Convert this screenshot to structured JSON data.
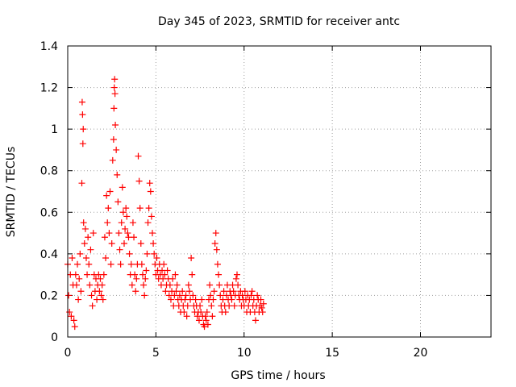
{
  "chart_data": {
    "type": "scatter",
    "title": "Day 345 of 2023, SRMTID for receiver antc",
    "xlabel": "GPS time / hours",
    "ylabel": "SRMTID / TECUs",
    "xlim": [
      0,
      24
    ],
    "ylim": [
      0,
      1.4
    ],
    "x_ticks": [
      0,
      5,
      10,
      15,
      20
    ],
    "x_tick_labels": [
      "0",
      "5",
      "10",
      "15",
      "20"
    ],
    "y_ticks": [
      0,
      0.2,
      0.4,
      0.6,
      0.8,
      1,
      1.2,
      1.4
    ],
    "y_tick_labels": [
      "0",
      "0.2",
      "0.4",
      "0.6",
      "0.8",
      "1",
      "1.2",
      "1.4"
    ],
    "grid": true,
    "marker": "+",
    "series": [
      {
        "name": "SRMTID",
        "color": "#ff0000",
        "points": [
          [
            0.0,
            0.35
          ],
          [
            0.05,
            0.2
          ],
          [
            0.1,
            0.12
          ],
          [
            0.15,
            0.3
          ],
          [
            0.2,
            0.1
          ],
          [
            0.25,
            0.38
          ],
          [
            0.3,
            0.25
          ],
          [
            0.35,
            0.08
          ],
          [
            0.4,
            0.05
          ],
          [
            0.45,
            0.3
          ],
          [
            0.5,
            0.25
          ],
          [
            0.55,
            0.35
          ],
          [
            0.6,
            0.18
          ],
          [
            0.65,
            0.28
          ],
          [
            0.7,
            0.4
          ],
          [
            0.75,
            0.22
          ],
          [
            0.8,
            0.74
          ],
          [
            0.82,
            1.13
          ],
          [
            0.84,
            1.07
          ],
          [
            0.86,
            0.93
          ],
          [
            0.88,
            1.0
          ],
          [
            0.9,
            0.55
          ],
          [
            0.95,
            0.45
          ],
          [
            1.0,
            0.52
          ],
          [
            1.05,
            0.38
          ],
          [
            1.1,
            0.3
          ],
          [
            1.15,
            0.48
          ],
          [
            1.2,
            0.35
          ],
          [
            1.25,
            0.25
          ],
          [
            1.3,
            0.42
          ],
          [
            1.35,
            0.2
          ],
          [
            1.4,
            0.15
          ],
          [
            1.45,
            0.5
          ],
          [
            1.5,
            0.3
          ],
          [
            1.55,
            0.22
          ],
          [
            1.6,
            0.28
          ],
          [
            1.65,
            0.18
          ],
          [
            1.7,
            0.25
          ],
          [
            1.75,
            0.3
          ],
          [
            1.8,
            0.22
          ],
          [
            1.85,
            0.28
          ],
          [
            1.9,
            0.2
          ],
          [
            1.95,
            0.25
          ],
          [
            2.0,
            0.18
          ],
          [
            2.05,
            0.3
          ],
          [
            2.1,
            0.48
          ],
          [
            2.15,
            0.38
          ],
          [
            2.2,
            0.68
          ],
          [
            2.25,
            0.55
          ],
          [
            2.3,
            0.62
          ],
          [
            2.35,
            0.5
          ],
          [
            2.4,
            0.7
          ],
          [
            2.45,
            0.35
          ],
          [
            2.5,
            0.45
          ],
          [
            2.55,
            0.85
          ],
          [
            2.6,
            0.95
          ],
          [
            2.62,
            1.1
          ],
          [
            2.64,
            1.2
          ],
          [
            2.66,
            1.24
          ],
          [
            2.68,
            1.17
          ],
          [
            2.7,
            1.02
          ],
          [
            2.75,
            0.9
          ],
          [
            2.8,
            0.78
          ],
          [
            2.85,
            0.65
          ],
          [
            2.9,
            0.5
          ],
          [
            2.95,
            0.42
          ],
          [
            3.0,
            0.35
          ],
          [
            3.05,
            0.55
          ],
          [
            3.1,
            0.72
          ],
          [
            3.15,
            0.6
          ],
          [
            3.2,
            0.45
          ],
          [
            3.25,
            0.52
          ],
          [
            3.3,
            0.62
          ],
          [
            3.35,
            0.58
          ],
          [
            3.4,
            0.5
          ],
          [
            3.45,
            0.48
          ],
          [
            3.5,
            0.4
          ],
          [
            3.55,
            0.3
          ],
          [
            3.6,
            0.35
          ],
          [
            3.65,
            0.25
          ],
          [
            3.7,
            0.55
          ],
          [
            3.75,
            0.48
          ],
          [
            3.8,
            0.3
          ],
          [
            3.85,
            0.22
          ],
          [
            3.9,
            0.28
          ],
          [
            3.95,
            0.35
          ],
          [
            4.0,
            0.87
          ],
          [
            4.05,
            0.75
          ],
          [
            4.1,
            0.62
          ],
          [
            4.15,
            0.45
          ],
          [
            4.2,
            0.35
          ],
          [
            4.25,
            0.3
          ],
          [
            4.3,
            0.25
          ],
          [
            4.35,
            0.2
          ],
          [
            4.4,
            0.28
          ],
          [
            4.45,
            0.32
          ],
          [
            4.5,
            0.4
          ],
          [
            4.55,
            0.55
          ],
          [
            4.6,
            0.62
          ],
          [
            4.65,
            0.74
          ],
          [
            4.7,
            0.7
          ],
          [
            4.75,
            0.58
          ],
          [
            4.8,
            0.5
          ],
          [
            4.85,
            0.45
          ],
          [
            4.9,
            0.4
          ],
          [
            4.95,
            0.35
          ],
          [
            5.0,
            0.3
          ],
          [
            5.05,
            0.38
          ],
          [
            5.1,
            0.32
          ],
          [
            5.15,
            0.28
          ],
          [
            5.2,
            0.35
          ],
          [
            5.25,
            0.3
          ],
          [
            5.3,
            0.25
          ],
          [
            5.35,
            0.32
          ],
          [
            5.4,
            0.28
          ],
          [
            5.45,
            0.35
          ],
          [
            5.5,
            0.3
          ],
          [
            5.55,
            0.22
          ],
          [
            5.6,
            0.25
          ],
          [
            5.65,
            0.32
          ],
          [
            5.7,
            0.28
          ],
          [
            5.75,
            0.2
          ],
          [
            5.8,
            0.25
          ],
          [
            5.85,
            0.18
          ],
          [
            5.9,
            0.22
          ],
          [
            5.95,
            0.28
          ],
          [
            6.0,
            0.15
          ],
          [
            6.05,
            0.2
          ],
          [
            6.1,
            0.3
          ],
          [
            6.15,
            0.22
          ],
          [
            6.2,
            0.25
          ],
          [
            6.25,
            0.18
          ],
          [
            6.3,
            0.15
          ],
          [
            6.35,
            0.2
          ],
          [
            6.4,
            0.12
          ],
          [
            6.45,
            0.18
          ],
          [
            6.5,
            0.22
          ],
          [
            6.55,
            0.15
          ],
          [
            6.6,
            0.12
          ],
          [
            6.65,
            0.18
          ],
          [
            6.7,
            0.2
          ],
          [
            6.75,
            0.1
          ],
          [
            6.8,
            0.15
          ],
          [
            6.85,
            0.25
          ],
          [
            6.9,
            0.22
          ],
          [
            6.95,
            0.18
          ],
          [
            7.0,
            0.38
          ],
          [
            7.05,
            0.3
          ],
          [
            7.1,
            0.2
          ],
          [
            7.15,
            0.15
          ],
          [
            7.2,
            0.12
          ],
          [
            7.25,
            0.18
          ],
          [
            7.3,
            0.15
          ],
          [
            7.35,
            0.1
          ],
          [
            7.4,
            0.12
          ],
          [
            7.45,
            0.08
          ],
          [
            7.5,
            0.15
          ],
          [
            7.55,
            0.12
          ],
          [
            7.6,
            0.18
          ],
          [
            7.65,
            0.1
          ],
          [
            7.7,
            0.06
          ],
          [
            7.75,
            0.05
          ],
          [
            7.8,
            0.1
          ],
          [
            7.85,
            0.08
          ],
          [
            7.9,
            0.12
          ],
          [
            7.95,
            0.06
          ],
          [
            8.0,
            0.18
          ],
          [
            8.05,
            0.25
          ],
          [
            8.1,
            0.2
          ],
          [
            8.15,
            0.15
          ],
          [
            8.2,
            0.1
          ],
          [
            8.25,
            0.18
          ],
          [
            8.3,
            0.22
          ],
          [
            8.35,
            0.45
          ],
          [
            8.4,
            0.5
          ],
          [
            8.45,
            0.42
          ],
          [
            8.5,
            0.35
          ],
          [
            8.55,
            0.3
          ],
          [
            8.6,
            0.25
          ],
          [
            8.65,
            0.2
          ],
          [
            8.7,
            0.15
          ],
          [
            8.75,
            0.12
          ],
          [
            8.8,
            0.18
          ],
          [
            8.85,
            0.22
          ],
          [
            8.9,
            0.15
          ],
          [
            8.95,
            0.12
          ],
          [
            9.0,
            0.2
          ],
          [
            9.05,
            0.25
          ],
          [
            9.1,
            0.18
          ],
          [
            9.15,
            0.15
          ],
          [
            9.2,
            0.22
          ],
          [
            9.25,
            0.2
          ],
          [
            9.3,
            0.18
          ],
          [
            9.35,
            0.25
          ],
          [
            9.4,
            0.22
          ],
          [
            9.45,
            0.15
          ],
          [
            9.5,
            0.2
          ],
          [
            9.55,
            0.28
          ],
          [
            9.6,
            0.3
          ],
          [
            9.65,
            0.25
          ],
          [
            9.7,
            0.2
          ],
          [
            9.75,
            0.18
          ],
          [
            9.8,
            0.22
          ],
          [
            9.85,
            0.15
          ],
          [
            9.9,
            0.2
          ],
          [
            9.95,
            0.18
          ],
          [
            10.0,
            0.15
          ],
          [
            10.05,
            0.22
          ],
          [
            10.1,
            0.18
          ],
          [
            10.15,
            0.12
          ],
          [
            10.2,
            0.2
          ],
          [
            10.25,
            0.15
          ],
          [
            10.3,
            0.18
          ],
          [
            10.35,
            0.12
          ],
          [
            10.4,
            0.2
          ],
          [
            10.45,
            0.22
          ],
          [
            10.5,
            0.15
          ],
          [
            10.55,
            0.18
          ],
          [
            10.6,
            0.12
          ],
          [
            10.65,
            0.08
          ],
          [
            10.7,
            0.15
          ],
          [
            10.75,
            0.2
          ],
          [
            10.8,
            0.18
          ],
          [
            10.85,
            0.12
          ],
          [
            10.9,
            0.15
          ],
          [
            10.95,
            0.18
          ],
          [
            11.0,
            0.14
          ],
          [
            11.05,
            0.12
          ],
          [
            11.1,
            0.16
          ]
        ]
      }
    ]
  }
}
